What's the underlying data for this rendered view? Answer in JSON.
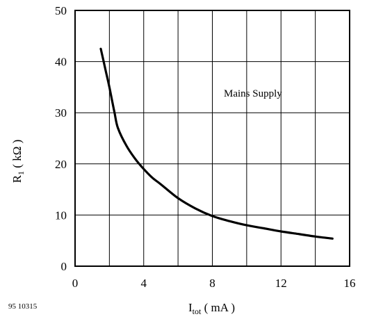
{
  "chart_data": {
    "type": "line",
    "xlabel_main": "I",
    "xlabel_sub": "tot",
    "xlabel_unit": " ( mA )",
    "ylabel_main": "R",
    "ylabel_sub": "1",
    "ylabel_unit": " ( kΩ )",
    "xlim": [
      0,
      16
    ],
    "ylim": [
      0,
      50
    ],
    "xticks": [
      "0",
      "4",
      "8",
      "12",
      "16"
    ],
    "xtick_values": [
      0,
      4,
      8,
      12,
      16
    ],
    "yticks": [
      "0",
      "10",
      "20",
      "30",
      "40",
      "50"
    ],
    "ytick_values": [
      0,
      10,
      20,
      30,
      40,
      50
    ],
    "x_grid_step": 2,
    "y_grid_step": 10,
    "grid": true,
    "annotation": "Mains Supply",
    "doc_id": "95 10315",
    "series": [
      {
        "x": [
          1.5,
          1.8,
          2.0,
          2.3,
          2.5,
          3.0,
          3.5,
          4.0,
          4.5,
          5.0,
          6.0,
          7.0,
          8.0,
          9.0,
          10.0,
          11.0,
          12.0,
          13.0,
          14.0,
          15.0
        ],
        "y": [
          42.5,
          38.0,
          35.0,
          30.0,
          27.0,
          23.5,
          21.0,
          19.0,
          17.3,
          16.0,
          13.3,
          11.3,
          9.8,
          8.8,
          8.0,
          7.4,
          6.8,
          6.3,
          5.8,
          5.4
        ]
      }
    ]
  }
}
